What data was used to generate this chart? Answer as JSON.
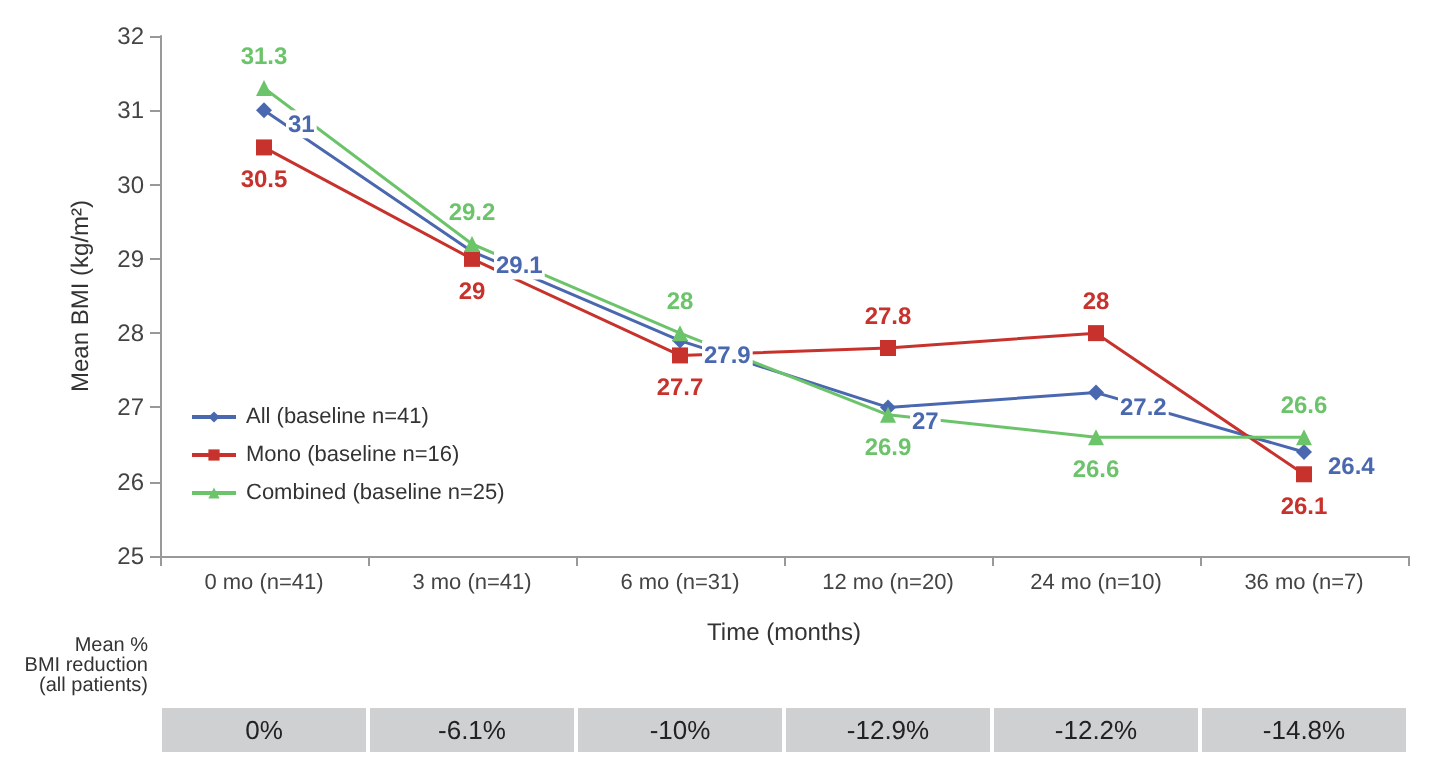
{
  "chart_data": {
    "type": "line",
    "xlabel": "Time (months)",
    "ylabel": "Mean BMI (kg/m²)",
    "categories": [
      "0 mo (n=41)",
      "3 mo (n=41)",
      "6 mo (n=31)",
      "12 mo (n=20)",
      "24 mo (n=10)",
      "36 mo (n=7)"
    ],
    "series": [
      {
        "name": "All (baseline n=41)",
        "color": "#4a68b0",
        "marker": "diamond",
        "values": [
          31,
          29.1,
          27.9,
          27,
          27.2,
          26.4
        ]
      },
      {
        "name": "Mono (baseline n=16)",
        "color": "#c8322c",
        "marker": "square",
        "values": [
          30.5,
          29,
          27.7,
          27.8,
          28,
          26.1
        ]
      },
      {
        "name": "Combined (baseline n=25)",
        "color": "#6cc46a",
        "marker": "triangle",
        "values": [
          31.3,
          29.2,
          28,
          26.9,
          26.6,
          26.6
        ]
      }
    ],
    "ylim": [
      25,
      32
    ],
    "yticks": [
      25,
      26,
      27,
      28,
      29,
      30,
      31,
      32
    ],
    "grid": false,
    "legend": "left",
    "data_labels": true,
    "annotations": [
      "Mean % BMI reduction (all patients)",
      "0%",
      "-6.1%",
      "-10%",
      "-12.9%",
      "-12.2%",
      "-14.8%"
    ]
  }
}
